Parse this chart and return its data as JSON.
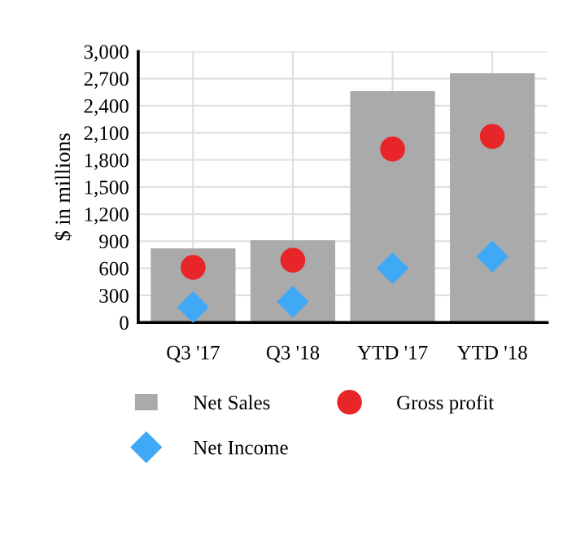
{
  "chart_data": {
    "type": "bar",
    "ylabel": "$ in millions",
    "categories": [
      "Q3 '17",
      "Q3 '18",
      "YTD '17",
      "YTD '18"
    ],
    "series": [
      {
        "name": "Net Sales",
        "color": "#aaaaaa",
        "values": [
          820,
          910,
          2560,
          2760
        ]
      },
      {
        "name": "Gross profit",
        "type": "scatter",
        "marker": "circle",
        "color": "#e8262a",
        "values": [
          610,
          690,
          1920,
          2060
        ]
      },
      {
        "name": "Net Income",
        "type": "scatter",
        "marker": "diamond",
        "color": "#3fa9f5",
        "values": [
          170,
          230,
          600,
          730
        ]
      }
    ],
    "ylim": [
      0,
      3000
    ],
    "yticks": [
      0,
      {
        "value": 300,
        "label": "300"
      },
      {
        "value": 600,
        "label": "600"
      },
      {
        "value": 900,
        "label": "900"
      },
      {
        "value": 1200,
        "label": "1,200"
      },
      {
        "value": 1500,
        "label": "1,500"
      },
      {
        "value": 1800,
        "label": "1,800"
      },
      {
        "value": 2100,
        "label": "2,100"
      },
      {
        "value": 2400,
        "label": "2,400"
      },
      {
        "value": 2700,
        "label": "2,700"
      },
      {
        "value": 3000,
        "label": "3,000"
      }
    ],
    "grid": true,
    "legend": "bottom"
  }
}
